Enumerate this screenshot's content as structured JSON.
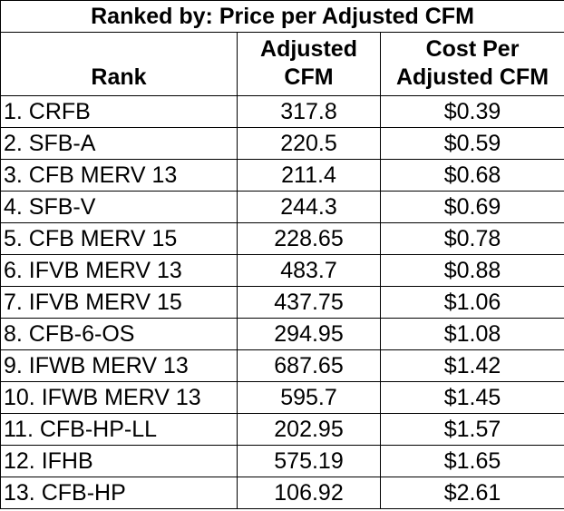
{
  "title": "Ranked by: Price per Adjusted CFM",
  "headers": {
    "rank": "Rank",
    "adjusted_cfm_line1": "Adjusted",
    "adjusted_cfm_line2": "CFM",
    "cost_line1": "Cost Per",
    "cost_line2": "Adjusted CFM"
  },
  "rows": [
    {
      "rank": "1. CRFB",
      "cfm": "317.8",
      "cost": "$0.39"
    },
    {
      "rank": "2. SFB-A",
      "cfm": "220.5",
      "cost": "$0.59"
    },
    {
      "rank": "3. CFB MERV 13",
      "cfm": "211.4",
      "cost": "$0.68"
    },
    {
      "rank": "4. SFB-V",
      "cfm": "244.3",
      "cost": "$0.69"
    },
    {
      "rank": "5. CFB MERV 15",
      "cfm": "228.65",
      "cost": "$0.78"
    },
    {
      "rank": "6. IFVB MERV 13",
      "cfm": "483.7",
      "cost": "$0.88"
    },
    {
      "rank": "7. IFVB MERV 15",
      "cfm": "437.75",
      "cost": "$1.06"
    },
    {
      "rank": "8. CFB-6-OS",
      "cfm": "294.95",
      "cost": "$1.08"
    },
    {
      "rank": "9. IFWB MERV 13",
      "cfm": "687.65",
      "cost": "$1.42"
    },
    {
      "rank": "10. IFWB MERV 13",
      "cfm": "595.7",
      "cost": "$1.45"
    },
    {
      "rank": "11. CFB-HP-LL",
      "cfm": "202.95",
      "cost": "$1.57"
    },
    {
      "rank": "12. IFHB",
      "cfm": "575.19",
      "cost": "$1.65"
    },
    {
      "rank": "13. CFB-HP",
      "cfm": "106.92",
      "cost": "$2.61"
    }
  ]
}
